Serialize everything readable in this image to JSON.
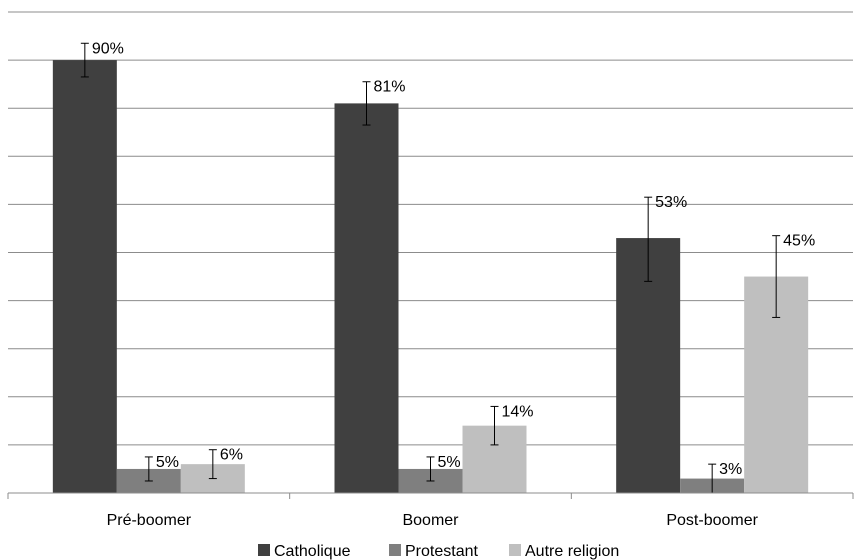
{
  "chart_data": {
    "type": "bar",
    "categories": [
      "Pré-boomer",
      "Boomer",
      "Post-boomer"
    ],
    "series": [
      {
        "name": "Catholique",
        "color": "#404040",
        "values": [
          90,
          81,
          53
        ],
        "labels": [
          "90%",
          "81%",
          "53%"
        ],
        "error_low": [
          86.5,
          76.5,
          44
        ],
        "error_high": [
          93.5,
          85.5,
          61.5
        ]
      },
      {
        "name": "Protestant",
        "color": "#7f7f7f",
        "values": [
          5,
          5,
          3
        ],
        "labels": [
          "5%",
          "5%",
          "3%"
        ],
        "error_low": [
          2.5,
          2.5,
          0
        ],
        "error_high": [
          7.5,
          7.5,
          6
        ]
      },
      {
        "name": "Autre religion",
        "color": "#bfbfbf",
        "values": [
          6,
          14,
          45
        ],
        "labels": [
          "6%",
          "14%",
          "45%"
        ],
        "error_low": [
          3,
          10,
          36.5
        ],
        "error_high": [
          9,
          18,
          53.5
        ]
      }
    ],
    "ylim": [
      0,
      100
    ],
    "grid": true,
    "legend_position": "bottom"
  }
}
